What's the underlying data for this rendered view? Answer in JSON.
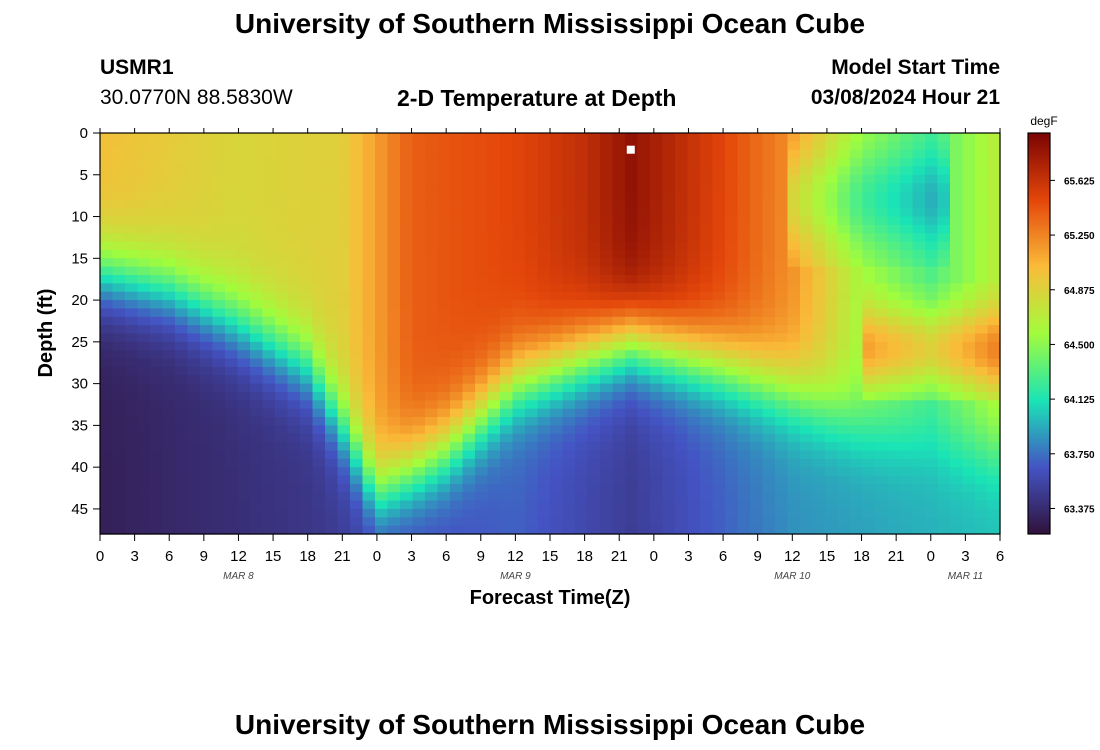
{
  "page": {
    "title": "University of Southern Mississippi Ocean Cube",
    "footer_title": "University of Southern Mississippi Ocean Cube",
    "station_id": "USMR1",
    "station_coords": "30.0770N  88.5830W",
    "plot_subtitle": "2-D Temperature at Depth",
    "model_start_label": "Model Start Time",
    "model_start_value": "03/08/2024 Hour 21"
  },
  "chart_data": {
    "type": "heatmap",
    "title": "2-D Temperature at Depth",
    "xlabel": "Forecast Time(Z)",
    "ylabel": "Depth (ft)",
    "x_unit": "hours from 03/08 00Z",
    "y_unit": "ft",
    "xlim": [
      0,
      78
    ],
    "ylim": [
      48,
      0
    ],
    "x_ticks": [
      0,
      3,
      6,
      9,
      12,
      15,
      18,
      21,
      24,
      27,
      30,
      33,
      36,
      39,
      42,
      45,
      48,
      51,
      54,
      57,
      60,
      63,
      66,
      69,
      72,
      75,
      78
    ],
    "x_tick_labels": [
      "0",
      "3",
      "6",
      "9",
      "12",
      "15",
      "18",
      "21",
      "0",
      "3",
      "6",
      "9",
      "12",
      "15",
      "18",
      "21",
      "0",
      "3",
      "6",
      "9",
      "12",
      "15",
      "18",
      "21",
      "0",
      "3",
      "6"
    ],
    "y_ticks": [
      0,
      5,
      10,
      15,
      20,
      25,
      30,
      35,
      40,
      45
    ],
    "y_tick_labels": [
      "0",
      "5",
      "10",
      "15",
      "20",
      "25",
      "30",
      "35",
      "40",
      "45"
    ],
    "day_labels": [
      {
        "text": "MAR 8",
        "x": 12
      },
      {
        "text": "MAR 9",
        "x": 36
      },
      {
        "text": "MAR 10",
        "x": 60
      },
      {
        "text": "MAR 11",
        "x": 75
      }
    ],
    "marker": {
      "x": 46,
      "y": 2
    },
    "colorbar": {
      "unit": "degF",
      "min": 63.2,
      "max": 65.95,
      "tick_values": [
        63.375,
        63.75,
        64.125,
        64.5,
        64.875,
        65.25,
        65.625
      ],
      "tick_labels": [
        "63.375",
        "63.750",
        "64.125",
        "64.500",
        "64.875",
        "65.250",
        "65.625"
      ],
      "colors": [
        "#30123b",
        "#4454c4",
        "#1ae4b6",
        "#a2fc3c",
        "#fabb39",
        "#e4460a",
        "#7a0403"
      ]
    },
    "thermocline_depth_ft": {
      "times": [
        0,
        6,
        12,
        18,
        21,
        24,
        30,
        36,
        42,
        46,
        54,
        60,
        66,
        72,
        78
      ],
      "depths": [
        17,
        19,
        23,
        28,
        35,
        43,
        38,
        30,
        27,
        25,
        28,
        31,
        35,
        37,
        38
      ]
    },
    "mixed_layer_values_degF": {
      "times": [
        0,
        12,
        21,
        27,
        36,
        42,
        46,
        54,
        60,
        66,
        72,
        78
      ],
      "values": [
        65.0,
        64.85,
        64.9,
        65.4,
        65.5,
        65.65,
        65.85,
        65.5,
        65.2,
        64.6,
        64.3,
        64.7
      ]
    },
    "deep_values_degF": {
      "times": [
        0,
        18,
        24,
        36,
        46,
        60,
        78
      ],
      "values": [
        63.3,
        63.45,
        63.55,
        63.7,
        63.5,
        63.85,
        64.0
      ]
    }
  }
}
